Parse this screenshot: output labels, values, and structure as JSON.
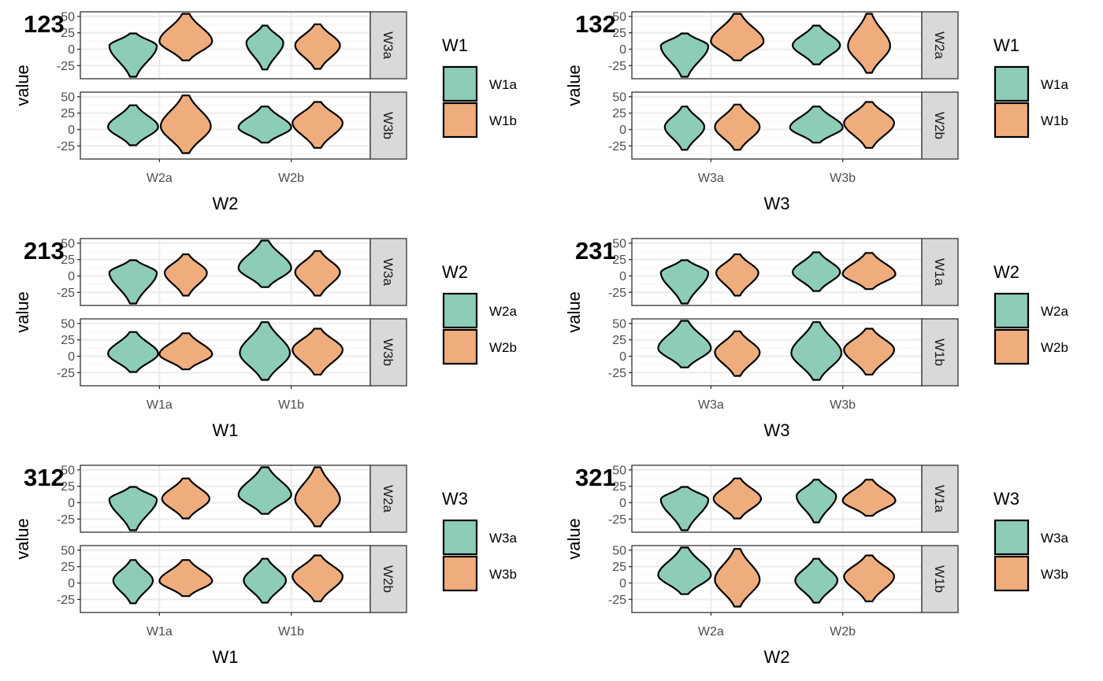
{
  "colors": {
    "group_a": "#8dcdb7",
    "group_b": "#efad7d",
    "grid_major": "#ebebeb",
    "grid_minor": "#f5f5f5",
    "strip_bg": "#d9d9d9",
    "border": "#333333",
    "violin_outline": "#000000"
  },
  "chart_data": [
    {
      "type": "violin",
      "tag": "123",
      "xlabel": "W2",
      "ylabel": "value",
      "categories": [
        "W2a",
        "W2b"
      ],
      "yticks": [
        -25,
        0,
        25,
        50
      ],
      "legend": {
        "title": "W1",
        "entries": [
          "W1a",
          "W1b"
        ]
      },
      "panels": [
        {
          "strip": "W3a",
          "ylim": [
            -45,
            57
          ],
          "violins": [
            {
              "category": "W2a",
              "group": "W1a",
              "min": -42,
              "max": 24,
              "mode": 5,
              "halfwidth": 0.18
            },
            {
              "category": "W2a",
              "group": "W1b",
              "min": -17,
              "max": 54,
              "mode": 12,
              "halfwidth": 0.2
            },
            {
              "category": "W2b",
              "group": "W1a",
              "min": -31,
              "max": 36,
              "mode": 10,
              "halfwidth": 0.14
            },
            {
              "category": "W2b",
              "group": "W1b",
              "min": -30,
              "max": 38,
              "mode": 6,
              "halfwidth": 0.17
            }
          ]
        },
        {
          "strip": "W3b",
          "ylim": [
            -45,
            57
          ],
          "violins": [
            {
              "category": "W2a",
              "group": "W1a",
              "min": -24,
              "max": 37,
              "mode": 4,
              "halfwidth": 0.19
            },
            {
              "category": "W2a",
              "group": "W1b",
              "min": -36,
              "max": 52,
              "mode": 5,
              "halfwidth": 0.19
            },
            {
              "category": "W2b",
              "group": "W1a",
              "min": -20,
              "max": 35,
              "mode": 3,
              "halfwidth": 0.2
            },
            {
              "category": "W2b",
              "group": "W1b",
              "min": -28,
              "max": 42,
              "mode": 10,
              "halfwidth": 0.19
            }
          ]
        }
      ]
    },
    {
      "type": "violin",
      "tag": "132",
      "xlabel": "W3",
      "ylabel": "value",
      "categories": [
        "W3a",
        "W3b"
      ],
      "yticks": [
        -25,
        0,
        25,
        50
      ],
      "legend": {
        "title": "W1",
        "entries": [
          "W1a",
          "W1b"
        ]
      },
      "panels": [
        {
          "strip": "W2a",
          "ylim": [
            -45,
            57
          ],
          "violins": [
            {
              "category": "W3a",
              "group": "W1a",
              "min": -42,
              "max": 24,
              "mode": 5,
              "halfwidth": 0.18
            },
            {
              "category": "W3a",
              "group": "W1b",
              "min": -17,
              "max": 54,
              "mode": 12,
              "halfwidth": 0.2
            },
            {
              "category": "W3b",
              "group": "W1a",
              "min": -23,
              "max": 36,
              "mode": 6,
              "halfwidth": 0.18
            },
            {
              "category": "W3b",
              "group": "W1b",
              "min": -36,
              "max": 54,
              "mode": 5,
              "halfwidth": 0.16
            }
          ]
        },
        {
          "strip": "W2b",
          "ylim": [
            -45,
            57
          ],
          "violins": [
            {
              "category": "W3a",
              "group": "W1a",
              "min": -31,
              "max": 35,
              "mode": 4,
              "halfwidth": 0.15
            },
            {
              "category": "W3a",
              "group": "W1b",
              "min": -31,
              "max": 38,
              "mode": 4,
              "halfwidth": 0.17
            },
            {
              "category": "W3b",
              "group": "W1a",
              "min": -20,
              "max": 35,
              "mode": 3,
              "halfwidth": 0.2
            },
            {
              "category": "W3b",
              "group": "W1b",
              "min": -28,
              "max": 42,
              "mode": 10,
              "halfwidth": 0.19
            }
          ]
        }
      ]
    },
    {
      "type": "violin",
      "tag": "213",
      "xlabel": "W1",
      "ylabel": "value",
      "categories": [
        "W1a",
        "W1b"
      ],
      "yticks": [
        -25,
        0,
        25,
        50
      ],
      "legend": {
        "title": "W2",
        "entries": [
          "W2a",
          "W2b"
        ]
      },
      "panels": [
        {
          "strip": "W3a",
          "ylim": [
            -45,
            57
          ],
          "violins": [
            {
              "category": "W1a",
              "group": "W2a",
              "min": -42,
              "max": 24,
              "mode": 5,
              "halfwidth": 0.18
            },
            {
              "category": "W1a",
              "group": "W2b",
              "min": -30,
              "max": 33,
              "mode": 5,
              "halfwidth": 0.16
            },
            {
              "category": "W1b",
              "group": "W2a",
              "min": -17,
              "max": 54,
              "mode": 12,
              "halfwidth": 0.2
            },
            {
              "category": "W1b",
              "group": "W2b",
              "min": -30,
              "max": 38,
              "mode": 6,
              "halfwidth": 0.17
            }
          ]
        },
        {
          "strip": "W3b",
          "ylim": [
            -45,
            57
          ],
          "violins": [
            {
              "category": "W1a",
              "group": "W2a",
              "min": -24,
              "max": 37,
              "mode": 4,
              "halfwidth": 0.19
            },
            {
              "category": "W1a",
              "group": "W2b",
              "min": -20,
              "max": 35,
              "mode": 3,
              "halfwidth": 0.2
            },
            {
              "category": "W1b",
              "group": "W2a",
              "min": -36,
              "max": 52,
              "mode": 5,
              "halfwidth": 0.19
            },
            {
              "category": "W1b",
              "group": "W2b",
              "min": -28,
              "max": 42,
              "mode": 10,
              "halfwidth": 0.19
            }
          ]
        }
      ]
    },
    {
      "type": "violin",
      "tag": "231",
      "xlabel": "W3",
      "ylabel": "value",
      "categories": [
        "W3a",
        "W3b"
      ],
      "yticks": [
        -25,
        0,
        25,
        50
      ],
      "legend": {
        "title": "W2",
        "entries": [
          "W2a",
          "W2b"
        ]
      },
      "panels": [
        {
          "strip": "W1a",
          "ylim": [
            -45,
            57
          ],
          "violins": [
            {
              "category": "W3a",
              "group": "W2a",
              "min": -42,
              "max": 24,
              "mode": 5,
              "halfwidth": 0.18
            },
            {
              "category": "W3a",
              "group": "W2b",
              "min": -30,
              "max": 33,
              "mode": 5,
              "halfwidth": 0.16
            },
            {
              "category": "W3b",
              "group": "W2a",
              "min": -23,
              "max": 36,
              "mode": 6,
              "halfwidth": 0.18
            },
            {
              "category": "W3b",
              "group": "W2b",
              "min": -20,
              "max": 35,
              "mode": 3,
              "halfwidth": 0.2
            }
          ]
        },
        {
          "strip": "W1b",
          "ylim": [
            -45,
            57
          ],
          "violins": [
            {
              "category": "W3a",
              "group": "W2a",
              "min": -17,
              "max": 54,
              "mode": 12,
              "halfwidth": 0.2
            },
            {
              "category": "W3a",
              "group": "W2b",
              "min": -30,
              "max": 38,
              "mode": 6,
              "halfwidth": 0.17
            },
            {
              "category": "W3b",
              "group": "W2a",
              "min": -36,
              "max": 52,
              "mode": 5,
              "halfwidth": 0.19
            },
            {
              "category": "W3b",
              "group": "W2b",
              "min": -28,
              "max": 42,
              "mode": 10,
              "halfwidth": 0.19
            }
          ]
        }
      ]
    },
    {
      "type": "violin",
      "tag": "312",
      "xlabel": "W1",
      "ylabel": "value",
      "categories": [
        "W1a",
        "W1b"
      ],
      "yticks": [
        -25,
        0,
        25,
        50
      ],
      "legend": {
        "title": "W3",
        "entries": [
          "W3a",
          "W3b"
        ]
      },
      "panels": [
        {
          "strip": "W2a",
          "ylim": [
            -45,
            57
          ],
          "violins": [
            {
              "category": "W1a",
              "group": "W3a",
              "min": -42,
              "max": 24,
              "mode": 5,
              "halfwidth": 0.18
            },
            {
              "category": "W1a",
              "group": "W3b",
              "min": -24,
              "max": 37,
              "mode": 6,
              "halfwidth": 0.18
            },
            {
              "category": "W1b",
              "group": "W3a",
              "min": -17,
              "max": 54,
              "mode": 12,
              "halfwidth": 0.2
            },
            {
              "category": "W1b",
              "group": "W3b",
              "min": -36,
              "max": 54,
              "mode": 5,
              "halfwidth": 0.17
            }
          ]
        },
        {
          "strip": "W2b",
          "ylim": [
            -45,
            57
          ],
          "violins": [
            {
              "category": "W1a",
              "group": "W3a",
              "min": -31,
              "max": 35,
              "mode": 4,
              "halfwidth": 0.15
            },
            {
              "category": "W1a",
              "group": "W3b",
              "min": -20,
              "max": 35,
              "mode": 3,
              "halfwidth": 0.2
            },
            {
              "category": "W1b",
              "group": "W3a",
              "min": -30,
              "max": 37,
              "mode": 4,
              "halfwidth": 0.16
            },
            {
              "category": "W1b",
              "group": "W3b",
              "min": -28,
              "max": 42,
              "mode": 10,
              "halfwidth": 0.19
            }
          ]
        }
      ]
    },
    {
      "type": "violin",
      "tag": "321",
      "xlabel": "W2",
      "ylabel": "value",
      "categories": [
        "W2a",
        "W2b"
      ],
      "yticks": [
        -25,
        0,
        25,
        50
      ],
      "legend": {
        "title": "W3",
        "entries": [
          "W3a",
          "W3b"
        ]
      },
      "panels": [
        {
          "strip": "W1a",
          "ylim": [
            -45,
            57
          ],
          "violins": [
            {
              "category": "W2a",
              "group": "W3a",
              "min": -42,
              "max": 24,
              "mode": 5,
              "halfwidth": 0.18
            },
            {
              "category": "W2a",
              "group": "W3b",
              "min": -24,
              "max": 37,
              "mode": 6,
              "halfwidth": 0.18
            },
            {
              "category": "W2b",
              "group": "W3a",
              "min": -30,
              "max": 35,
              "mode": 10,
              "halfwidth": 0.15
            },
            {
              "category": "W2b",
              "group": "W3b",
              "min": -20,
              "max": 35,
              "mode": 3,
              "halfwidth": 0.2
            }
          ]
        },
        {
          "strip": "W1b",
          "ylim": [
            -45,
            57
          ],
          "violins": [
            {
              "category": "W2a",
              "group": "W3a",
              "min": -17,
              "max": 54,
              "mode": 12,
              "halfwidth": 0.2
            },
            {
              "category": "W2a",
              "group": "W3b",
              "min": -36,
              "max": 52,
              "mode": 5,
              "halfwidth": 0.17
            },
            {
              "category": "W2b",
              "group": "W3a",
              "min": -30,
              "max": 37,
              "mode": 4,
              "halfwidth": 0.16
            },
            {
              "category": "W2b",
              "group": "W3b",
              "min": -28,
              "max": 42,
              "mode": 10,
              "halfwidth": 0.19
            }
          ]
        }
      ]
    }
  ]
}
